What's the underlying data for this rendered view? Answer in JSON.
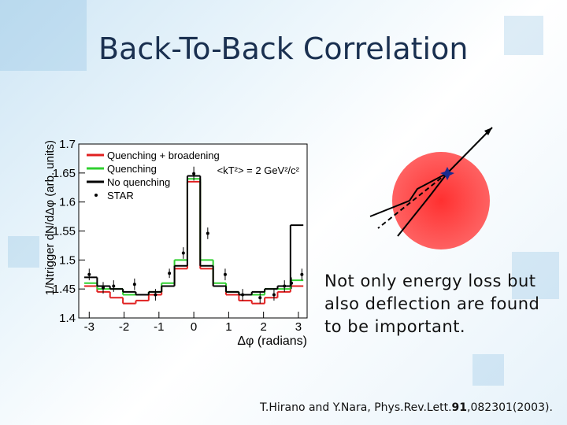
{
  "slide": {
    "title": "Back-To-Back Correlation",
    "body": "Not only energy loss but also deflection are found to be important.",
    "citation": [
      "T.Hirano and Y.Nara, Phys.Rev.Lett.",
      "91",
      ",082301(2003)."
    ]
  },
  "chart_data": {
    "type": "histogram",
    "xlabel": "Δφ (radians)",
    "ylabel": "1/Ntrigger dN/dΔφ (arb. units)",
    "annotation": "<kT²> = 2 GeV²/c²",
    "legend_position": "upper left",
    "xlim": [
      -3.3,
      3.25
    ],
    "ylim": [
      1.4,
      1.7
    ],
    "xticks": [
      -3,
      -2,
      -1,
      0,
      1,
      2,
      3
    ],
    "yticks": [
      1.4,
      1.45,
      1.5,
      1.55,
      1.6,
      1.65,
      1.7
    ],
    "bins": [
      -3.1416,
      -2.772,
      -2.4024,
      -2.0328,
      -1.6632,
      -1.2936,
      -0.924,
      -0.5544,
      -0.1848,
      0.1848,
      0.5544,
      0.924,
      1.2936,
      1.6632,
      2.0328,
      2.4024,
      2.772,
      3.1416
    ],
    "series": [
      {
        "name": "Quenching + broadening",
        "color": "#e02020",
        "values": [
          1.455,
          1.445,
          1.435,
          1.425,
          1.43,
          1.44,
          1.455,
          1.485,
          1.635,
          1.485,
          1.455,
          1.44,
          1.43,
          1.425,
          1.435,
          1.445,
          1.455
        ]
      },
      {
        "name": "Quenching",
        "color": "#30d030",
        "values": [
          1.46,
          1.45,
          1.45,
          1.44,
          1.44,
          1.445,
          1.46,
          1.5,
          1.64,
          1.5,
          1.46,
          1.445,
          1.44,
          1.44,
          1.45,
          1.45,
          1.465
        ]
      },
      {
        "name": "No quenching",
        "color": "#000000",
        "values": [
          1.47,
          1.455,
          1.45,
          1.445,
          1.44,
          1.445,
          1.455,
          1.49,
          1.645,
          1.49,
          1.455,
          1.445,
          1.44,
          1.445,
          1.45,
          1.455,
          1.56
        ]
      },
      {
        "name": "STAR",
        "color": "#000000",
        "type": "errorbar",
        "x": [
          -3.0,
          -2.6,
          -2.3,
          -1.7,
          -1.1,
          -0.7,
          -0.3,
          0.0,
          0.4,
          0.9,
          1.4,
          1.9,
          2.3,
          2.6,
          2.8,
          3.1
        ],
        "values": [
          1.475,
          1.452,
          1.455,
          1.458,
          1.44,
          1.477,
          1.512,
          1.649,
          1.546,
          1.475,
          1.44,
          1.435,
          1.44,
          1.455,
          1.46,
          1.475
        ],
        "errors": [
          0.01,
          0.01,
          0.01,
          0.01,
          0.01,
          0.008,
          0.01,
          0.012,
          0.01,
          0.01,
          0.01,
          0.01,
          0.01,
          0.01,
          0.01,
          0.01
        ]
      }
    ]
  }
}
